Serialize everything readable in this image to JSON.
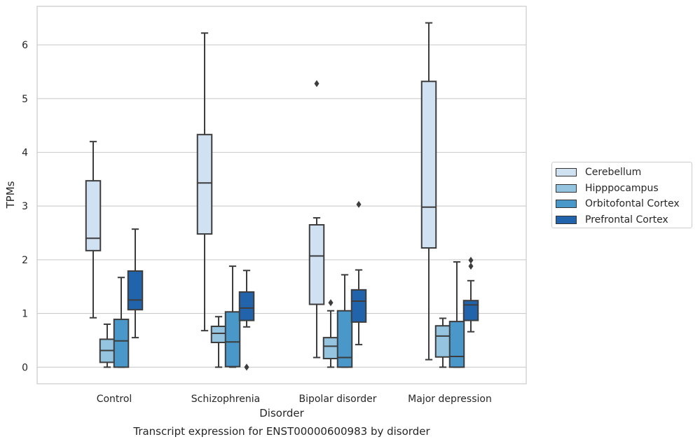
{
  "chart_data": {
    "type": "box",
    "title": "Transcript expression for ENST00000600983 by disorder",
    "xlabel": "Disorder",
    "ylabel": "TPMs",
    "ylim": [
      -0.3,
      6.75
    ],
    "yticks": [
      0,
      1,
      2,
      3,
      4,
      5,
      6
    ],
    "categories": [
      "Control",
      "Schizophrenia",
      "Bipolar disorder",
      "Major depression"
    ],
    "grid": "horizontal",
    "legend_position": "right",
    "series": [
      {
        "name": "Cerebellum",
        "color": "#d0e1f2",
        "boxes": [
          {
            "whislo": 0.92,
            "q1": 2.17,
            "med": 2.4,
            "q3": 3.47,
            "whishi": 4.2,
            "fliers": []
          },
          {
            "whislo": 0.68,
            "q1": 2.48,
            "med": 3.43,
            "q3": 4.33,
            "whishi": 6.22,
            "fliers": []
          },
          {
            "whislo": 0.18,
            "q1": 1.17,
            "med": 2.07,
            "q3": 2.65,
            "whishi": 2.78,
            "fliers": [
              5.28
            ]
          },
          {
            "whislo": 0.14,
            "q1": 2.22,
            "med": 2.98,
            "q3": 5.32,
            "whishi": 6.41,
            "fliers": []
          }
        ]
      },
      {
        "name": "Hipppocampus",
        "color": "#94c4df",
        "boxes": [
          {
            "whislo": 0.0,
            "q1": 0.09,
            "med": 0.31,
            "q3": 0.52,
            "whishi": 0.8,
            "fliers": []
          },
          {
            "whislo": 0.0,
            "q1": 0.46,
            "med": 0.63,
            "q3": 0.76,
            "whishi": 0.94,
            "fliers": []
          },
          {
            "whislo": 0.0,
            "q1": 0.16,
            "med": 0.39,
            "q3": 0.55,
            "whishi": 1.05,
            "fliers": [
              1.2
            ]
          },
          {
            "whislo": 0.0,
            "q1": 0.19,
            "med": 0.58,
            "q3": 0.77,
            "whishi": 0.91,
            "fliers": []
          }
        ]
      },
      {
        "name": "Orbitofontal Cortex",
        "color": "#4a98c9",
        "boxes": [
          {
            "whislo": 0.0,
            "q1": 0.0,
            "med": 0.49,
            "q3": 0.89,
            "whishi": 1.67,
            "fliers": []
          },
          {
            "whislo": 0.0,
            "q1": 0.01,
            "med": 0.47,
            "q3": 1.03,
            "whishi": 1.88,
            "fliers": []
          },
          {
            "whislo": 0.0,
            "q1": 0.0,
            "med": 0.18,
            "q3": 1.05,
            "whishi": 1.72,
            "fliers": []
          },
          {
            "whislo": 0.0,
            "q1": 0.0,
            "med": 0.2,
            "q3": 0.85,
            "whishi": 1.96,
            "fliers": []
          }
        ]
      },
      {
        "name": "Prefrontal Cortex",
        "color": "#2164ab",
        "boxes": [
          {
            "whislo": 0.55,
            "q1": 1.07,
            "med": 1.25,
            "q3": 1.79,
            "whishi": 2.57,
            "fliers": []
          },
          {
            "whislo": 0.75,
            "q1": 0.87,
            "med": 1.1,
            "q3": 1.4,
            "whishi": 1.8,
            "fliers": [
              0.0
            ]
          },
          {
            "whislo": 0.42,
            "q1": 0.84,
            "med": 1.23,
            "q3": 1.44,
            "whishi": 1.81,
            "fliers": [
              3.03
            ]
          },
          {
            "whislo": 0.66,
            "q1": 0.87,
            "med": 1.16,
            "q3": 1.24,
            "whishi": 1.61,
            "fliers": [
              1.88,
              1.99
            ]
          }
        ]
      }
    ]
  }
}
